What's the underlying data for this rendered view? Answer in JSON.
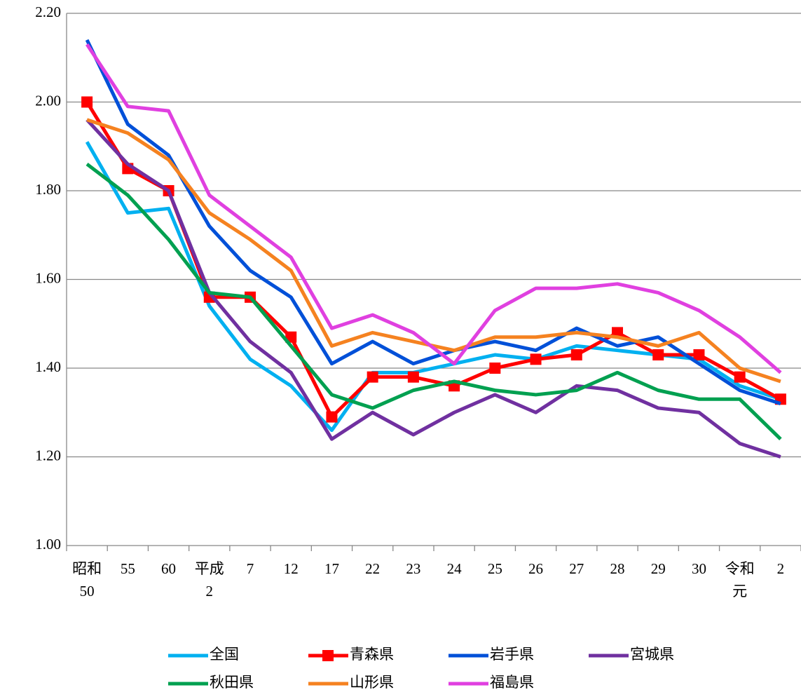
{
  "chart_data": {
    "type": "line",
    "categories": [
      "昭和50",
      "55",
      "60",
      "平成2",
      "7",
      "12",
      "17",
      "22",
      "23",
      "24",
      "25",
      "26",
      "27",
      "28",
      "29",
      "30",
      "令和元",
      "2"
    ],
    "ylim": [
      1.0,
      2.2
    ],
    "yticks": [
      {
        "value": 1.0,
        "label": "1.00"
      },
      {
        "value": 1.2,
        "label": "1.20"
      },
      {
        "value": 1.4,
        "label": "1.40"
      },
      {
        "value": 1.6,
        "label": "1.60"
      },
      {
        "value": 1.8,
        "label": "1.80"
      },
      {
        "value": 2.0,
        "label": "2.00"
      },
      {
        "value": 2.2,
        "label": "2.20"
      }
    ],
    "grid": true,
    "legend": "bottom",
    "series": [
      {
        "name": "全国",
        "color": "#00b0f0",
        "values": [
          1.91,
          1.75,
          1.76,
          1.54,
          1.42,
          1.36,
          1.26,
          1.39,
          1.39,
          1.41,
          1.43,
          1.42,
          1.45,
          1.44,
          1.43,
          1.42,
          1.36,
          1.33
        ]
      },
      {
        "name": "青森県",
        "color": "#ff0000",
        "marker": "square",
        "values": [
          2.0,
          1.85,
          1.8,
          1.56,
          1.56,
          1.47,
          1.29,
          1.38,
          1.38,
          1.36,
          1.4,
          1.42,
          1.43,
          1.48,
          1.43,
          1.43,
          1.38,
          1.33
        ]
      },
      {
        "name": "岩手県",
        "color": "#0050d8",
        "values": [
          2.14,
          1.95,
          1.88,
          1.72,
          1.62,
          1.56,
          1.41,
          1.46,
          1.41,
          1.44,
          1.46,
          1.44,
          1.49,
          1.45,
          1.47,
          1.41,
          1.35,
          1.32
        ]
      },
      {
        "name": "宮城県",
        "color": "#7030a0",
        "values": [
          1.96,
          1.86,
          1.8,
          1.57,
          1.46,
          1.39,
          1.24,
          1.3,
          1.25,
          1.3,
          1.34,
          1.3,
          1.36,
          1.35,
          1.31,
          1.3,
          1.23,
          1.2
        ]
      },
      {
        "name": "秋田県",
        "color": "#00a050",
        "values": [
          1.86,
          1.79,
          1.69,
          1.57,
          1.56,
          1.45,
          1.34,
          1.31,
          1.35,
          1.37,
          1.35,
          1.34,
          1.35,
          1.39,
          1.35,
          1.33,
          1.33,
          1.24
        ]
      },
      {
        "name": "山形県",
        "color": "#f58220",
        "values": [
          1.96,
          1.93,
          1.87,
          1.75,
          1.69,
          1.62,
          1.45,
          1.48,
          1.46,
          1.44,
          1.47,
          1.47,
          1.48,
          1.47,
          1.45,
          1.48,
          1.4,
          1.37
        ]
      },
      {
        "name": "福島県",
        "color": "#e040e0",
        "values": [
          2.13,
          1.99,
          1.98,
          1.79,
          1.72,
          1.65,
          1.49,
          1.52,
          1.48,
          1.41,
          1.53,
          1.58,
          1.58,
          1.59,
          1.57,
          1.53,
          1.47,
          1.39
        ]
      }
    ]
  }
}
